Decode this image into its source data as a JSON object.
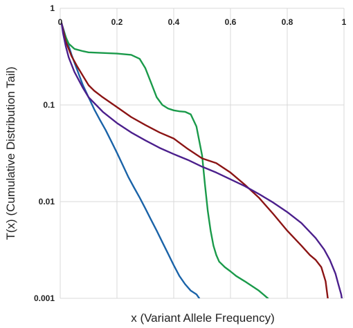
{
  "chart_data": {
    "type": "line",
    "xlabel": "x (Variant Allele Frequency)",
    "ylabel": "T(x) (Cumulative Distribution Tail)",
    "xlim": [
      0,
      1
    ],
    "ylim": [
      0.001,
      1
    ],
    "y_scale": "log",
    "grid": true,
    "x_ticks": [
      "0",
      "0.2",
      "0.4",
      "0.6",
      "0.8",
      "1"
    ],
    "y_ticks": [
      "1",
      "0.1",
      "0.01",
      "0.001"
    ],
    "x_tick_values": [
      0,
      0.2,
      0.4,
      0.6,
      0.8,
      1
    ],
    "y_tick_values": [
      1,
      0.1,
      0.01,
      0.001
    ],
    "series": [
      {
        "color": "#1a63a8",
        "x": [
          0.005,
          0.02,
          0.04,
          0.06,
          0.08,
          0.1,
          0.12,
          0.14,
          0.16,
          0.18,
          0.2,
          0.22,
          0.24,
          0.26,
          0.28,
          0.3,
          0.32,
          0.34,
          0.36,
          0.38,
          0.4,
          0.42,
          0.44,
          0.46,
          0.48,
          0.49
        ],
        "y": [
          0.7,
          0.5,
          0.33,
          0.23,
          0.16,
          0.12,
          0.09,
          0.07,
          0.055,
          0.042,
          0.032,
          0.024,
          0.018,
          0.014,
          0.011,
          0.0085,
          0.0065,
          0.005,
          0.0038,
          0.0029,
          0.0022,
          0.0017,
          0.0014,
          0.0012,
          0.0011,
          0.001
        ]
      },
      {
        "color": "#1a9a4a",
        "x": [
          0.005,
          0.01,
          0.02,
          0.03,
          0.05,
          0.08,
          0.1,
          0.15,
          0.2,
          0.25,
          0.28,
          0.3,
          0.32,
          0.34,
          0.36,
          0.38,
          0.4,
          0.42,
          0.44,
          0.46,
          0.48,
          0.5,
          0.51,
          0.52,
          0.53,
          0.54,
          0.55,
          0.56,
          0.58,
          0.6,
          0.62,
          0.65,
          0.7,
          0.75,
          0.78
        ],
        "y": [
          0.7,
          0.6,
          0.5,
          0.43,
          0.38,
          0.36,
          0.35,
          0.345,
          0.34,
          0.33,
          0.3,
          0.24,
          0.17,
          0.12,
          0.1,
          0.092,
          0.088,
          0.086,
          0.085,
          0.08,
          0.06,
          0.03,
          0.015,
          0.008,
          0.005,
          0.0035,
          0.0028,
          0.0024,
          0.0021,
          0.0019,
          0.0017,
          0.0015,
          0.0012,
          0.0009,
          0.0008
        ]
      },
      {
        "color": "#8b1414",
        "x": [
          0.005,
          0.02,
          0.04,
          0.06,
          0.08,
          0.1,
          0.12,
          0.15,
          0.2,
          0.25,
          0.3,
          0.35,
          0.4,
          0.45,
          0.5,
          0.55,
          0.6,
          0.65,
          0.7,
          0.75,
          0.8,
          0.85,
          0.88,
          0.9,
          0.92,
          0.935,
          0.945
        ],
        "y": [
          0.7,
          0.45,
          0.32,
          0.25,
          0.2,
          0.16,
          0.14,
          0.12,
          0.095,
          0.075,
          0.062,
          0.052,
          0.045,
          0.035,
          0.028,
          0.025,
          0.02,
          0.015,
          0.011,
          0.0075,
          0.005,
          0.0035,
          0.0028,
          0.0025,
          0.0021,
          0.0015,
          0.0009
        ]
      },
      {
        "color": "#4b1f8c",
        "x": [
          0.005,
          0.01,
          0.02,
          0.03,
          0.05,
          0.08,
          0.1,
          0.15,
          0.2,
          0.25,
          0.3,
          0.35,
          0.4,
          0.45,
          0.5,
          0.55,
          0.6,
          0.65,
          0.7,
          0.75,
          0.8,
          0.85,
          0.9,
          0.93,
          0.95,
          0.97,
          0.98,
          0.99,
          0.995
        ],
        "y": [
          0.7,
          0.55,
          0.4,
          0.31,
          0.22,
          0.15,
          0.12,
          0.085,
          0.065,
          0.052,
          0.043,
          0.036,
          0.031,
          0.027,
          0.023,
          0.02,
          0.017,
          0.0145,
          0.012,
          0.0098,
          0.0078,
          0.006,
          0.0042,
          0.0032,
          0.0025,
          0.0018,
          0.0014,
          0.0011,
          0.0009
        ]
      }
    ]
  }
}
